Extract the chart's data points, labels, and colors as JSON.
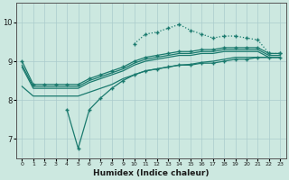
{
  "xlabel": "Humidex (Indice chaleur)",
  "bg_color": "#cce8e0",
  "grid_color": "#aacccc",
  "line_color": "#1a7a6e",
  "xlim": [
    -0.5,
    23.5
  ],
  "ylim": [
    6.5,
    10.5
  ],
  "xticks": [
    0,
    1,
    2,
    3,
    4,
    5,
    6,
    7,
    8,
    9,
    10,
    11,
    12,
    13,
    14,
    15,
    16,
    17,
    18,
    19,
    20,
    21,
    22,
    23
  ],
  "yticks": [
    7,
    8,
    9,
    10
  ],
  "line_dotted_x": [
    10,
    11,
    12,
    13,
    14,
    15,
    16,
    17,
    18,
    19,
    20,
    21,
    22,
    23
  ],
  "line_dotted_y": [
    9.45,
    9.7,
    9.75,
    9.85,
    9.95,
    9.8,
    9.7,
    9.6,
    9.65,
    9.65,
    9.6,
    9.55,
    9.2,
    9.2
  ],
  "line_top_x": [
    0,
    1,
    2,
    3,
    4,
    5,
    6,
    7,
    8,
    9,
    10,
    11,
    12,
    13,
    14,
    15,
    16,
    17,
    18,
    19,
    20,
    21,
    22,
    23
  ],
  "line_top_y": [
    9.0,
    8.4,
    8.4,
    8.4,
    8.4,
    8.4,
    8.55,
    8.65,
    8.75,
    8.85,
    9.0,
    9.1,
    9.15,
    9.2,
    9.25,
    9.25,
    9.3,
    9.3,
    9.35,
    9.35,
    9.35,
    9.35,
    9.2,
    9.2
  ],
  "line_mid_x": [
    0,
    1,
    2,
    3,
    4,
    5,
    6,
    7,
    8,
    9,
    10,
    11,
    12,
    13,
    14,
    15,
    16,
    17,
    18,
    19,
    20,
    21,
    22,
    23
  ],
  "line_mid_y": [
    8.9,
    8.35,
    8.35,
    8.35,
    8.35,
    8.35,
    8.5,
    8.6,
    8.7,
    8.8,
    8.95,
    9.05,
    9.1,
    9.15,
    9.2,
    9.2,
    9.25,
    9.25,
    9.3,
    9.3,
    9.3,
    9.3,
    9.15,
    9.15
  ],
  "line_low_x": [
    0,
    1,
    2,
    3,
    4,
    5,
    6,
    7,
    8,
    9,
    10,
    11,
    12,
    13,
    14,
    15,
    16,
    17,
    18,
    19,
    20,
    21,
    22,
    23
  ],
  "line_low_y": [
    8.85,
    8.3,
    8.3,
    8.3,
    8.3,
    8.3,
    8.45,
    8.55,
    8.65,
    8.75,
    8.9,
    9.0,
    9.05,
    9.1,
    9.15,
    9.15,
    9.2,
    9.2,
    9.25,
    9.25,
    9.25,
    9.25,
    9.1,
    9.1
  ],
  "line_dip_x": [
    4,
    5,
    6,
    7,
    8,
    9,
    10,
    11,
    12,
    13,
    14,
    15,
    16,
    17,
    18,
    19,
    20,
    21,
    22,
    23
  ],
  "line_dip_y": [
    7.75,
    6.75,
    7.75,
    8.05,
    8.3,
    8.5,
    8.65,
    8.75,
    8.8,
    8.85,
    8.9,
    8.9,
    8.95,
    8.95,
    9.0,
    9.05,
    9.05,
    9.1,
    9.1,
    9.1
  ],
  "line_bot_x": [
    0,
    1,
    2,
    3,
    4,
    5,
    6,
    7,
    8,
    9,
    10,
    11,
    12,
    13,
    14,
    15,
    16,
    17,
    18,
    19,
    20,
    21,
    22,
    23
  ],
  "line_bot_y": [
    8.35,
    8.1,
    8.1,
    8.1,
    8.1,
    8.1,
    8.2,
    8.3,
    8.4,
    8.55,
    8.65,
    8.75,
    8.8,
    8.85,
    8.9,
    8.92,
    8.97,
    9.0,
    9.05,
    9.1,
    9.1,
    9.1,
    9.1,
    9.1
  ]
}
